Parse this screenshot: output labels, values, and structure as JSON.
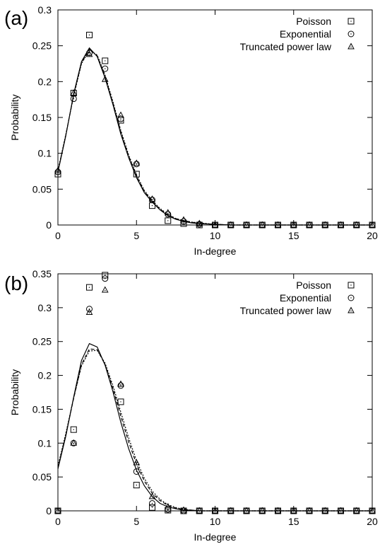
{
  "chart_data": [
    {
      "type": "scatter",
      "panel_label": "(a)",
      "xlabel": "In-degree",
      "ylabel": "Probability",
      "xlim": [
        0,
        20
      ],
      "ylim": [
        0,
        0.3
      ],
      "xticks": [
        0,
        5,
        10,
        15,
        20
      ],
      "xtick_labels": [
        "0",
        "5",
        "10",
        "15",
        "20"
      ],
      "yticks": [
        0,
        0.05,
        0.1,
        0.15,
        0.2,
        0.25,
        0.3
      ],
      "ytick_labels": [
        "0",
        "0.05",
        "0.1",
        "0.15",
        "0.2",
        "0.25",
        "0.3"
      ],
      "legend_position": "top-right",
      "grid": false,
      "series": [
        {
          "name": "Poisson",
          "marker": "square",
          "x": [
            0,
            1,
            2,
            3,
            4,
            5,
            6,
            7,
            8,
            9,
            10,
            11,
            12,
            13,
            14,
            15,
            16,
            17,
            18,
            19,
            20
          ],
          "y": [
            0.071,
            0.184,
            0.265,
            0.229,
            0.146,
            0.071,
            0.027,
            0.006,
            0.002,
            0,
            0,
            0,
            0,
            0,
            0,
            0,
            0,
            0,
            0,
            0,
            0
          ]
        },
        {
          "name": "Exponential",
          "marker": "circle",
          "x": [
            0,
            1,
            2,
            3,
            4,
            5,
            6,
            7,
            8,
            9,
            10,
            11,
            12,
            13,
            14,
            15,
            16,
            17,
            18,
            19,
            20
          ],
          "y": [
            0.074,
            0.176,
            0.24,
            0.218,
            0.148,
            0.085,
            0.035,
            0.015,
            0.005,
            0.001,
            0,
            0,
            0,
            0,
            0,
            0,
            0,
            0,
            0,
            0,
            0
          ]
        },
        {
          "name": "Truncated power law",
          "marker": "triangle",
          "x": [
            0,
            1,
            2,
            3,
            4,
            5,
            6,
            7,
            8,
            9,
            10,
            11,
            12,
            13,
            14,
            15,
            16,
            17,
            18,
            19,
            20
          ],
          "y": [
            0.076,
            0.184,
            0.238,
            0.203,
            0.153,
            0.086,
            0.036,
            0.017,
            0.007,
            0.002,
            0,
            0,
            0,
            0,
            0,
            0,
            0,
            0,
            0,
            0,
            0
          ]
        }
      ],
      "fit_curves": [
        {
          "style": "solid",
          "x": [
            0,
            0.5,
            1,
            1.5,
            2,
            2.5,
            3,
            3.5,
            4,
            4.5,
            5,
            5.5,
            6,
            6.5,
            7,
            7.5,
            8,
            8.5,
            9,
            10,
            11,
            12,
            13,
            14,
            15,
            16,
            17,
            18,
            19,
            20
          ],
          "y": [
            0.074,
            0.124,
            0.183,
            0.228,
            0.247,
            0.235,
            0.205,
            0.168,
            0.127,
            0.094,
            0.066,
            0.045,
            0.032,
            0.021,
            0.013,
            0.008,
            0.005,
            0.003,
            0.002,
            0.001,
            0,
            0,
            0,
            0,
            0,
            0,
            0,
            0,
            0,
            0
          ]
        },
        {
          "style": "dashed",
          "x": [
            0,
            0.5,
            1,
            1.5,
            2,
            2.5,
            3,
            3.5,
            4,
            4.5,
            5,
            5.5,
            6,
            6.5,
            7,
            7.5,
            8,
            8.5,
            9,
            10,
            11,
            12,
            13,
            14,
            15,
            16,
            17,
            18,
            19,
            20
          ],
          "y": [
            0.075,
            0.125,
            0.181,
            0.226,
            0.245,
            0.236,
            0.207,
            0.17,
            0.13,
            0.096,
            0.068,
            0.047,
            0.033,
            0.022,
            0.014,
            0.009,
            0.006,
            0.004,
            0.002,
            0.001,
            0,
            0,
            0,
            0,
            0,
            0,
            0,
            0,
            0,
            0
          ]
        },
        {
          "style": "dotted",
          "x": [
            0,
            0.5,
            1,
            1.5,
            2,
            2.5,
            3,
            3.5,
            4,
            4.5,
            5,
            5.5,
            6,
            6.5,
            7,
            7.5,
            8,
            8.5,
            9,
            10,
            11,
            12,
            13,
            14,
            15,
            16,
            17,
            18,
            19,
            20
          ],
          "y": [
            0.076,
            0.126,
            0.18,
            0.225,
            0.244,
            0.237,
            0.209,
            0.172,
            0.132,
            0.098,
            0.07,
            0.048,
            0.034,
            0.023,
            0.015,
            0.009,
            0.006,
            0.004,
            0.003,
            0.001,
            0,
            0,
            0,
            0,
            0,
            0,
            0,
            0,
            0,
            0
          ]
        }
      ]
    },
    {
      "type": "scatter",
      "panel_label": "(b)",
      "xlabel": "In-degree",
      "ylabel": "Probability",
      "xlim": [
        0,
        20
      ],
      "ylim": [
        0,
        0.35
      ],
      "xticks": [
        0,
        5,
        10,
        15,
        20
      ],
      "xtick_labels": [
        "0",
        "5",
        "10",
        "15",
        "20"
      ],
      "yticks": [
        0,
        0.05,
        0.1,
        0.15,
        0.2,
        0.25,
        0.3,
        0.35
      ],
      "ytick_labels": [
        "0",
        "0.05",
        "0.1",
        "0.15",
        "0.2",
        "0.25",
        "0.3",
        "0.35"
      ],
      "legend_position": "top-right",
      "grid": false,
      "series": [
        {
          "name": "Poisson",
          "marker": "square",
          "x": [
            0,
            1,
            2,
            3,
            4,
            5,
            6,
            7,
            8,
            9,
            10,
            11,
            12,
            13,
            14,
            15,
            16,
            17,
            18,
            19,
            20
          ],
          "y": [
            0,
            0.12,
            0.33,
            0.348,
            0.161,
            0.038,
            0.005,
            0.001,
            0,
            0,
            0,
            0,
            0,
            0,
            0,
            0,
            0,
            0,
            0,
            0,
            0
          ]
        },
        {
          "name": "Exponential",
          "marker": "circle",
          "x": [
            0,
            1,
            2,
            3,
            4,
            5,
            6,
            7,
            8,
            9,
            10,
            11,
            12,
            13,
            14,
            15,
            16,
            17,
            18,
            19,
            20
          ],
          "y": [
            0,
            0.1,
            0.298,
            0.343,
            0.185,
            0.058,
            0.011,
            0.002,
            0,
            0,
            0,
            0,
            0,
            0,
            0,
            0,
            0,
            0,
            0,
            0,
            0
          ]
        },
        {
          "name": "Truncated power law",
          "marker": "triangle",
          "x": [
            0,
            1,
            2,
            3,
            4,
            5,
            6,
            7,
            8,
            9,
            10,
            11,
            12,
            13,
            14,
            15,
            16,
            17,
            18,
            19,
            20
          ],
          "y": [
            0,
            0.1,
            0.293,
            0.326,
            0.187,
            0.071,
            0.021,
            0.006,
            0.001,
            0,
            0,
            0,
            0,
            0,
            0,
            0,
            0,
            0,
            0,
            0,
            0
          ]
        }
      ],
      "fit_curves": [
        {
          "style": "solid",
          "x": [
            0,
            0.5,
            1,
            1.5,
            2,
            2.5,
            3,
            3.5,
            4,
            4.5,
            5,
            5.5,
            6,
            6.5,
            7,
            7.5,
            8,
            8.5,
            9,
            10,
            11,
            12,
            13,
            14,
            15,
            16,
            17,
            18,
            19,
            20
          ],
          "y": [
            0.062,
            0.11,
            0.168,
            0.222,
            0.247,
            0.242,
            0.215,
            0.176,
            0.131,
            0.092,
            0.06,
            0.037,
            0.021,
            0.011,
            0.006,
            0.003,
            0.001,
            0.001,
            0,
            0,
            0,
            0,
            0,
            0,
            0,
            0,
            0,
            0,
            0,
            0
          ]
        },
        {
          "style": "dashed",
          "x": [
            0,
            0.5,
            1,
            1.5,
            2,
            2.5,
            3,
            3.5,
            4,
            4.5,
            5,
            5.5,
            6,
            6.5,
            7,
            7.5,
            8,
            8.5,
            9,
            10,
            11,
            12,
            13,
            14,
            15,
            16,
            17,
            18,
            19,
            20
          ],
          "y": [
            0.064,
            0.112,
            0.166,
            0.216,
            0.239,
            0.238,
            0.216,
            0.181,
            0.14,
            0.102,
            0.069,
            0.044,
            0.026,
            0.015,
            0.008,
            0.004,
            0.002,
            0.001,
            0,
            0,
            0,
            0,
            0,
            0,
            0,
            0,
            0,
            0,
            0,
            0
          ]
        },
        {
          "style": "dotted",
          "x": [
            0,
            0.5,
            1,
            1.5,
            2,
            2.5,
            3,
            3.5,
            4,
            4.5,
            5,
            5.5,
            6,
            6.5,
            7,
            7.5,
            8,
            8.5,
            9,
            10,
            11,
            12,
            13,
            14,
            15,
            16,
            17,
            18,
            19,
            20
          ],
          "y": [
            0.066,
            0.114,
            0.167,
            0.214,
            0.236,
            0.237,
            0.218,
            0.185,
            0.146,
            0.108,
            0.074,
            0.048,
            0.029,
            0.017,
            0.009,
            0.005,
            0.002,
            0.001,
            0,
            0,
            0,
            0,
            0,
            0,
            0,
            0,
            0,
            0,
            0,
            0
          ]
        }
      ]
    }
  ]
}
